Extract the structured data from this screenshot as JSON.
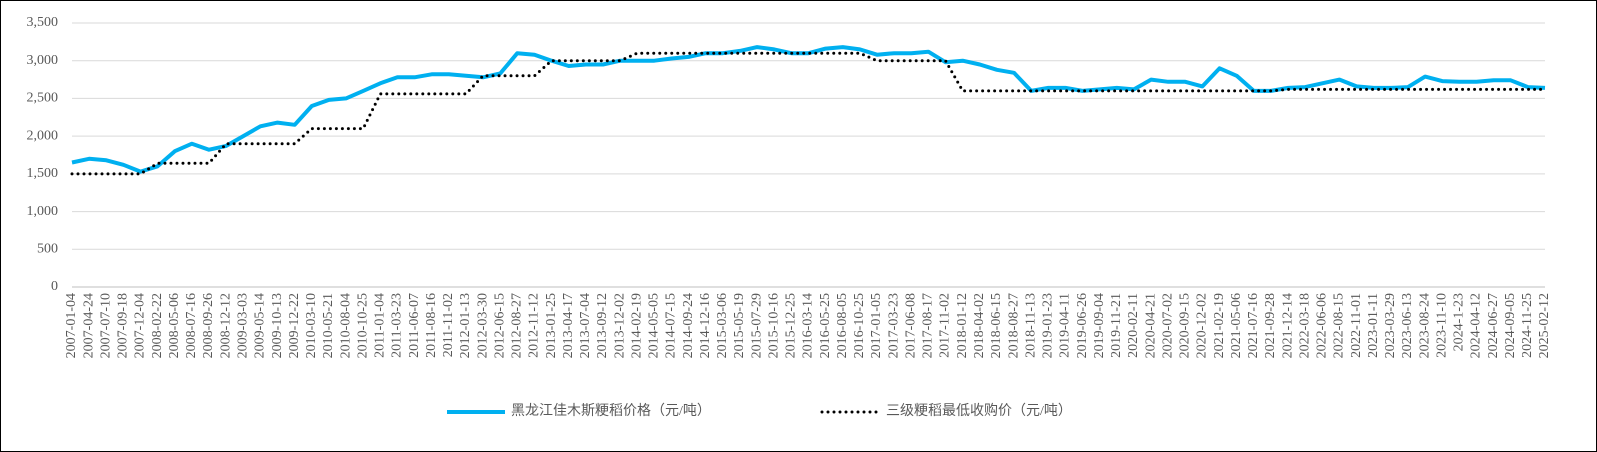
{
  "chart_data": {
    "type": "line",
    "categories": [
      "2007-01-04",
      "2007-04-24",
      "2007-07-10",
      "2007-09-18",
      "2007-12-04",
      "2008-02-22",
      "2008-05-06",
      "2008-07-16",
      "2008-09-26",
      "2008-12-12",
      "2009-03-03",
      "2009-05-14",
      "2009-10-13",
      "2009-12-22",
      "2010-03-10",
      "2010-05-21",
      "2010-08-04",
      "2010-10-25",
      "2011-01-04",
      "2011-03-23",
      "2011-06-07",
      "2011-08-16",
      "2011-11-02",
      "2012-01-13",
      "2012-03-30",
      "2012-06-15",
      "2012-08-27",
      "2012-11-12",
      "2013-01-25",
      "2013-04-17",
      "2013-07-04",
      "2013-09-12",
      "2013-12-02",
      "2014-02-19",
      "2014-05-05",
      "2014-07-15",
      "2014-09-24",
      "2014-12-16",
      "2015-03-06",
      "2015-05-19",
      "2015-07-29",
      "2015-10-16",
      "2015-12-25",
      "2016-03-14",
      "2016-05-25",
      "2016-08-05",
      "2016-10-25",
      "2017-01-05",
      "2017-03-23",
      "2017-06-08",
      "2017-08-17",
      "2017-11-02",
      "2018-01-12",
      "2018-04-02",
      "2018-06-15",
      "2018-08-27",
      "2018-11-13",
      "2019-01-23",
      "2019-04-11",
      "2019-06-26",
      "2019-09-04",
      "2019-11-21",
      "2020-02-11",
      "2020-04-21",
      "2020-07-02",
      "2020-09-15",
      "2020-12-02",
      "2021-02-19",
      "2021-05-06",
      "2021-07-16",
      "2021-09-28",
      "2021-12-14",
      "2022-03-18",
      "2022-06-06",
      "2022-08-15",
      "2022-11-01",
      "2023-01-11",
      "2023-03-29",
      "2023-06-13",
      "2023-08-24",
      "2023-11-10",
      "2024-1-23",
      "2024-04-12",
      "2024-06-27",
      "2024-09-05",
      "2024-11-25",
      "2025-02-12"
    ],
    "series": [
      {
        "name": "黑龙江佳木斯粳稻价格（元/吨）",
        "color": "#00b0f0",
        "style": "solid",
        "values": [
          1650,
          1700,
          1680,
          1620,
          1530,
          1600,
          1800,
          1900,
          1820,
          1870,
          2000,
          2130,
          2180,
          2150,
          2400,
          2480,
          2500,
          2600,
          2700,
          2780,
          2780,
          2820,
          2820,
          2800,
          2780,
          2830,
          3100,
          3080,
          3000,
          2930,
          2950,
          2950,
          3000,
          3000,
          3000,
          3030,
          3050,
          3100,
          3100,
          3130,
          3180,
          3150,
          3100,
          3100,
          3160,
          3180,
          3150,
          3080,
          3100,
          3100,
          3120,
          2980,
          3000,
          2950,
          2880,
          2840,
          2600,
          2640,
          2640,
          2600,
          2620,
          2640,
          2620,
          2750,
          2720,
          2720,
          2660,
          2900,
          2800,
          2600,
          2600,
          2640,
          2650,
          2700,
          2750,
          2660,
          2640,
          2640,
          2650,
          2790,
          2730,
          2720,
          2720,
          2740,
          2740,
          2650,
          2640
        ]
      },
      {
        "name": "三级粳稻最低收购价（元/吨）",
        "color": "#000000",
        "style": "dotted",
        "values": [
          1500,
          1500,
          1500,
          1500,
          1500,
          1640,
          1640,
          1640,
          1640,
          1900,
          1900,
          1900,
          1900,
          1900,
          2100,
          2100,
          2100,
          2100,
          2560,
          2560,
          2560,
          2560,
          2560,
          2560,
          2800,
          2800,
          2800,
          2800,
          3000,
          3000,
          3000,
          3000,
          3000,
          3100,
          3100,
          3100,
          3100,
          3100,
          3100,
          3100,
          3100,
          3100,
          3100,
          3100,
          3100,
          3100,
          3100,
          3000,
          3000,
          3000,
          3000,
          3000,
          2600,
          2600,
          2600,
          2600,
          2600,
          2600,
          2600,
          2600,
          2600,
          2600,
          2600,
          2600,
          2600,
          2600,
          2600,
          2600,
          2600,
          2600,
          2600,
          2620,
          2620,
          2620,
          2620,
          2620,
          2620,
          2620,
          2620,
          2620,
          2620,
          2620,
          2620,
          2620,
          2620,
          2620,
          2620
        ]
      }
    ],
    "ylim": [
      0,
      3500
    ],
    "yticks": [
      0,
      500,
      {
        "value": 1000,
        "label": "1,000"
      },
      {
        "value": 1500,
        "label": "1,500"
      },
      {
        "value": 2000,
        "label": "2,000"
      },
      {
        "value": 2500,
        "label": "2,500"
      },
      {
        "value": 3000,
        "label": "3,000"
      },
      {
        "value": 3500,
        "label": "3,500"
      }
    ],
    "grid": true,
    "legend": "bottom"
  }
}
